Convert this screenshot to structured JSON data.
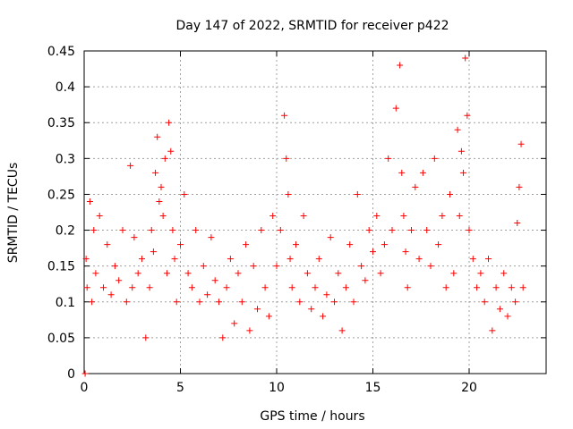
{
  "chart_data": {
    "type": "scatter",
    "title": "Day 147 of 2022, SRMTID for receiver p422",
    "xlabel": "GPS time / hours",
    "ylabel": "SRMTID / TECUs",
    "xlim": [
      0,
      24
    ],
    "ylim": [
      0,
      0.45
    ],
    "xticks": [
      0,
      5,
      10,
      15,
      20
    ],
    "xtick_labels": [
      "0",
      "5",
      "10",
      "15",
      "20"
    ],
    "yticks": [
      0,
      0.05,
      0.1,
      0.15,
      0.2,
      0.25,
      0.3,
      0.35,
      0.4,
      0.45
    ],
    "ytick_labels": [
      "0",
      "0.05",
      "0.1",
      "0.15",
      "0.2",
      "0.25",
      "0.3",
      "0.35",
      "0.4",
      "0.45"
    ],
    "grid": true,
    "marker": "+",
    "color": "#ff0000",
    "series": [
      {
        "name": "SRMTID",
        "x": [
          0.05,
          0.1,
          0.15,
          0.3,
          0.4,
          0.5,
          0.6,
          0.8,
          1.0,
          1.2,
          1.4,
          1.6,
          1.8,
          2.0,
          2.2,
          2.4,
          2.5,
          2.6,
          2.8,
          3.0,
          3.2,
          3.4,
          3.5,
          3.6,
          3.7,
          3.8,
          3.9,
          4.0,
          4.1,
          4.2,
          4.3,
          4.4,
          4.5,
          4.6,
          4.7,
          4.8,
          5.0,
          5.2,
          5.4,
          5.6,
          5.8,
          6.0,
          6.2,
          6.4,
          6.6,
          6.8,
          7.0,
          7.2,
          7.4,
          7.6,
          7.8,
          8.0,
          8.2,
          8.4,
          8.6,
          8.8,
          9.0,
          9.2,
          9.4,
          9.6,
          9.8,
          10.0,
          10.2,
          10.4,
          10.5,
          10.6,
          10.7,
          10.8,
          11.0,
          11.2,
          11.4,
          11.6,
          11.8,
          12.0,
          12.2,
          12.4,
          12.6,
          12.8,
          13.0,
          13.2,
          13.4,
          13.6,
          13.8,
          14.0,
          14.2,
          14.4,
          14.6,
          14.8,
          15.0,
          15.2,
          15.4,
          15.6,
          15.8,
          16.0,
          16.2,
          16.4,
          16.5,
          16.6,
          16.7,
          16.8,
          17.0,
          17.2,
          17.4,
          17.6,
          17.8,
          18.0,
          18.2,
          18.4,
          18.6,
          18.8,
          19.0,
          19.2,
          19.4,
          19.5,
          19.6,
          19.7,
          19.8,
          19.9,
          20.0,
          20.2,
          20.4,
          20.6,
          20.8,
          21.0,
          21.2,
          21.4,
          21.6,
          21.8,
          22.0,
          22.2,
          22.4,
          22.5,
          22.6,
          22.7,
          22.8
        ],
        "y": [
          0.0,
          0.16,
          0.12,
          0.24,
          0.1,
          0.2,
          0.14,
          0.22,
          0.12,
          0.18,
          0.11,
          0.15,
          0.13,
          0.2,
          0.1,
          0.29,
          0.12,
          0.19,
          0.14,
          0.16,
          0.05,
          0.12,
          0.2,
          0.17,
          0.28,
          0.33,
          0.24,
          0.26,
          0.22,
          0.3,
          0.14,
          0.35,
          0.31,
          0.2,
          0.16,
          0.1,
          0.18,
          0.25,
          0.14,
          0.12,
          0.2,
          0.1,
          0.15,
          0.11,
          0.19,
          0.13,
          0.1,
          0.05,
          0.12,
          0.16,
          0.07,
          0.14,
          0.1,
          0.18,
          0.06,
          0.15,
          0.09,
          0.2,
          0.12,
          0.08,
          0.22,
          0.15,
          0.2,
          0.36,
          0.3,
          0.25,
          0.16,
          0.12,
          0.18,
          0.1,
          0.22,
          0.14,
          0.09,
          0.12,
          0.16,
          0.08,
          0.11,
          0.19,
          0.1,
          0.14,
          0.06,
          0.12,
          0.18,
          0.1,
          0.25,
          0.15,
          0.13,
          0.2,
          0.17,
          0.22,
          0.14,
          0.18,
          0.3,
          0.2,
          0.37,
          0.43,
          0.28,
          0.22,
          0.17,
          0.12,
          0.2,
          0.26,
          0.16,
          0.28,
          0.2,
          0.15,
          0.3,
          0.18,
          0.22,
          0.12,
          0.25,
          0.14,
          0.34,
          0.22,
          0.31,
          0.28,
          0.44,
          0.36,
          0.2,
          0.16,
          0.12,
          0.14,
          0.1,
          0.16,
          0.06,
          0.12,
          0.09,
          0.14,
          0.08,
          0.12,
          0.1,
          0.21,
          0.26,
          0.32,
          0.12
        ]
      }
    ]
  }
}
